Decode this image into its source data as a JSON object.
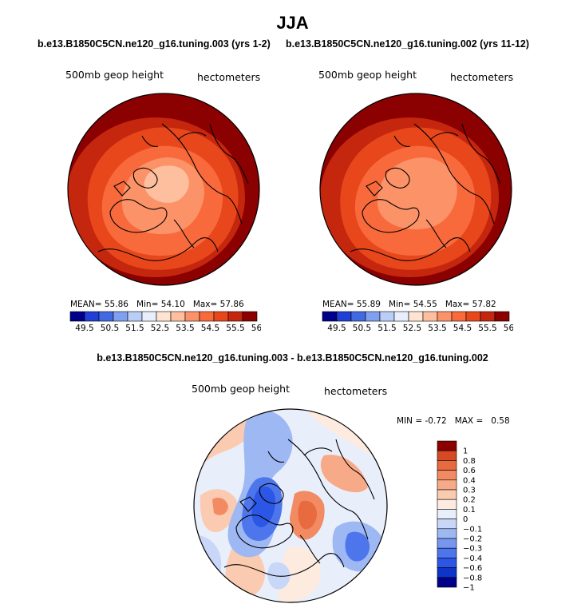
{
  "figure": {
    "title": "JJA",
    "left_case": "b.e13.B1850C5CN.ne120_g16.tuning.003 (yrs 1-2)",
    "right_case": "b.e13.B1850C5CN.ne120_g16.tuning.002 (yrs 11-12)",
    "diff_title": "b.e13.B1850C5CN.ne120_g16.tuning.003 - b.e13.B1850C5CN.ne120_g16.tuning.002"
  },
  "colors": {
    "abs_scale": [
      "#00008b",
      "#1f3fd6",
      "#4169e1",
      "#7fa0ee",
      "#b9cdf7",
      "#e8eefb",
      "#ffe4d2",
      "#fdbf9e",
      "#fc9268",
      "#f86a3c",
      "#e8471c",
      "#c5260e",
      "#8b0000"
    ],
    "diff_scale": [
      "#00008b",
      "#0e34c8",
      "#2c57e6",
      "#4d76ec",
      "#7696f0",
      "#9eb8f4",
      "#c8d6f8",
      "#e9eefb",
      "#fdebe0",
      "#fbcbb1",
      "#f7aa88",
      "#f28a62",
      "#e86a3f",
      "#d54a22",
      "#8b0000"
    ]
  },
  "chart_data": [
    {
      "type": "heatmap",
      "id": "left",
      "projection": "north polar stereographic",
      "label": "500mb geop height",
      "units": "hectometers",
      "stats": {
        "mean_label": "MEAN=",
        "mean": "55.86",
        "min_label": "Min=",
        "min": "54.10",
        "max_label": "Max=",
        "max": "57.86"
      },
      "colorbar_ticks": [
        "49.5",
        "50.5",
        "51.5",
        "52.5",
        "53.5",
        "54.5",
        "55.5",
        "56.5"
      ]
    },
    {
      "type": "heatmap",
      "id": "right",
      "projection": "north polar stereographic",
      "label": "500mb geop height",
      "units": "hectometers",
      "stats": {
        "mean_label": "MEAN=",
        "mean": "55.89",
        "min_label": "Min=",
        "min": "54.55",
        "max_label": "Max=",
        "max": "57.82"
      },
      "colorbar_ticks": [
        "49.5",
        "50.5",
        "51.5",
        "52.5",
        "53.5",
        "54.5",
        "55.5",
        "56.5"
      ]
    },
    {
      "type": "heatmap",
      "id": "difference",
      "projection": "north polar stereographic",
      "label": "500mb geop height",
      "units": "hectometers",
      "stats": {
        "min_label": "MIN =",
        "min": "-0.72",
        "max_label": "MAX =",
        "max": "0.58"
      },
      "colorbar_ticks": [
        "1",
        "0.8",
        "0.6",
        "0.4",
        "0.3",
        "0.2",
        "0.1",
        "0",
        "−0.1",
        "−0.2",
        "−0.3",
        "−0.4",
        "−0.6",
        "−0.8",
        "−1"
      ]
    }
  ]
}
